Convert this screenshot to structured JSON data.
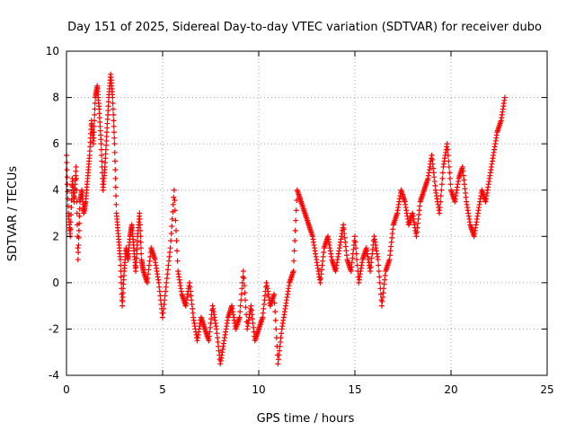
{
  "chart_data": {
    "type": "scatter",
    "title": "Day 151 of 2025, Sidereal Day-to-day VTEC variation (SDTVAR) for receiver dubo",
    "xlabel": "GPS time / hours",
    "ylabel": "SDTVAR / TECUs",
    "xlim": [
      0,
      25
    ],
    "ylim": [
      -4,
      10
    ],
    "xticks": [
      0,
      5,
      10,
      15,
      20,
      25
    ],
    "yticks": [
      -4,
      -2,
      0,
      2,
      4,
      6,
      8,
      10
    ],
    "xtick_labels": [
      "0",
      "5",
      "10",
      "15",
      "20",
      "25"
    ],
    "ytick_labels": [
      "-4",
      "-2",
      "0",
      "2",
      "4",
      "6",
      "8",
      "10"
    ],
    "grid": true,
    "marker": "plus",
    "color": "#ff0000",
    "series": [
      {
        "name": "SDTVAR",
        "x": [
          0.0,
          0.1,
          0.2,
          0.3,
          0.4,
          0.5,
          0.6,
          0.7,
          0.8,
          0.9,
          1.0,
          1.1,
          1.2,
          1.3,
          1.4,
          1.5,
          1.6,
          1.7,
          1.8,
          1.9,
          2.0,
          2.1,
          2.2,
          2.3,
          2.4,
          2.5,
          2.6,
          2.7,
          2.8,
          2.9,
          3.0,
          3.1,
          3.2,
          3.3,
          3.4,
          3.5,
          3.6,
          3.7,
          3.8,
          3.9,
          4.0,
          4.2,
          4.4,
          4.6,
          4.8,
          5.0,
          5.2,
          5.4,
          5.6,
          5.8,
          6.0,
          6.2,
          6.4,
          6.6,
          6.8,
          7.0,
          7.2,
          7.4,
          7.6,
          7.8,
          8.0,
          8.2,
          8.4,
          8.6,
          8.8,
          9.0,
          9.2,
          9.4,
          9.6,
          9.8,
          10.0,
          10.2,
          10.4,
          10.6,
          10.8,
          11.0,
          11.2,
          11.4,
          11.6,
          11.8,
          12.0,
          12.2,
          12.4,
          12.6,
          12.8,
          13.0,
          13.2,
          13.4,
          13.6,
          13.8,
          14.0,
          14.2,
          14.4,
          14.6,
          14.8,
          15.0,
          15.2,
          15.4,
          15.6,
          15.8,
          16.0,
          16.2,
          16.4,
          16.6,
          16.8,
          17.0,
          17.2,
          17.4,
          17.6,
          17.8,
          18.0,
          18.2,
          18.4,
          18.6,
          18.8,
          19.0,
          19.2,
          19.4,
          19.6,
          19.8,
          20.0,
          20.2,
          20.4,
          20.6,
          20.8,
          21.0,
          21.2,
          21.4,
          21.6,
          21.8,
          22.0,
          22.2,
          22.4,
          22.6,
          22.8
        ],
        "y": [
          5.5,
          3.0,
          2.0,
          4.5,
          3.5,
          5.0,
          1.0,
          3.5,
          4.0,
          3.0,
          3.5,
          4.5,
          5.5,
          7.0,
          6.0,
          8.0,
          8.5,
          7.5,
          6.0,
          4.0,
          5.0,
          6.5,
          8.0,
          9.0,
          8.0,
          6.0,
          3.0,
          2.0,
          1.0,
          -1.0,
          0.5,
          1.5,
          1.0,
          2.0,
          2.5,
          1.5,
          0.5,
          2.0,
          3.0,
          1.0,
          0.5,
          0.0,
          1.5,
          1.0,
          0.0,
          -1.5,
          0.0,
          1.5,
          4.0,
          0.5,
          -0.5,
          -1.0,
          0.0,
          -1.5,
          -2.5,
          -1.5,
          -2.0,
          -2.5,
          -1.0,
          -2.0,
          -3.5,
          -2.5,
          -1.5,
          -1.0,
          -2.0,
          -1.5,
          0.5,
          -2.0,
          -1.0,
          -2.5,
          -2.0,
          -1.5,
          0.0,
          -1.0,
          -0.5,
          -3.5,
          -2.0,
          -1.0,
          0.0,
          0.5,
          4.0,
          3.5,
          3.0,
          2.5,
          2.0,
          1.0,
          0.0,
          1.5,
          2.0,
          1.0,
          0.5,
          1.5,
          2.5,
          1.0,
          0.5,
          2.0,
          0.0,
          1.0,
          1.5,
          0.5,
          2.0,
          1.0,
          -1.0,
          0.5,
          1.0,
          2.5,
          3.0,
          4.0,
          3.5,
          2.5,
          3.0,
          2.0,
          3.5,
          4.0,
          4.5,
          5.5,
          4.0,
          3.0,
          5.0,
          6.0,
          4.0,
          3.5,
          4.5,
          5.0,
          3.5,
          2.5,
          2.0,
          3.0,
          4.0,
          3.5,
          4.5,
          5.5,
          6.5,
          7.0,
          8.0
        ]
      }
    ]
  }
}
